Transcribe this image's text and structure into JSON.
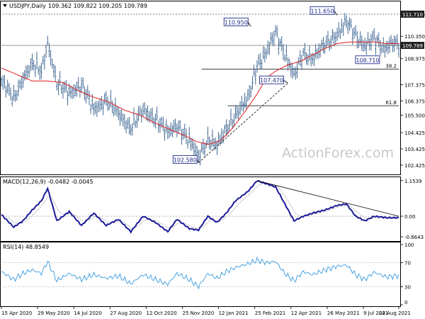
{
  "chart_data": {
    "type": "candlestick",
    "header": {
      "symbol_label": "USDJPY,Daily",
      "ohlc_text": "109.362 109.822 109.205 109.789"
    },
    "watermark": "ActionForex.com",
    "x_ticks": [
      "15 Apr 2020",
      "29 May 2020",
      "14 Jul 2020",
      "27 Aug 2020",
      "12 Oct 2020",
      "25 Nov 2020",
      "12 Jan 2021",
      "25 Feb 2021",
      "12 Apr 2021",
      "26 May 2021",
      "9 Jul 2021",
      "24 Aug 2021"
    ],
    "price": {
      "ylim": [
        101.9,
        112.45
      ],
      "y_ticks": [
        "111.710",
        "110.350",
        "108.975",
        "107.375",
        "106.375",
        "105.500",
        "104.425",
        "103.425",
        "102.425"
      ],
      "y_tick_values": [
        111.71,
        110.35,
        108.975,
        107.375,
        106.375,
        105.5,
        104.425,
        103.425,
        102.425
      ],
      "current_value": "109.789",
      "current_numeric": 109.789,
      "resistance_value": "111.710",
      "resistance_numeric": 111.71,
      "close_path": [
        [
          0,
          107.6
        ],
        [
          8,
          106.5
        ],
        [
          14,
          107.8
        ],
        [
          20,
          108.6
        ],
        [
          26,
          108.2
        ],
        [
          30,
          110.0
        ],
        [
          36,
          107.4
        ],
        [
          44,
          106.9
        ],
        [
          52,
          107.3
        ],
        [
          60,
          105.9
        ],
        [
          68,
          106.4
        ],
        [
          76,
          105.6
        ],
        [
          84,
          104.7
        ],
        [
          92,
          105.8
        ],
        [
          100,
          105.3
        ],
        [
          108,
          104.4
        ],
        [
          114,
          104.9
        ],
        [
          122,
          103.9
        ],
        [
          128,
          103.0
        ],
        [
          134,
          104.0
        ],
        [
          140,
          103.6
        ],
        [
          146,
          104.7
        ],
        [
          152,
          105.5
        ],
        [
          160,
          106.5
        ],
        [
          166,
          108.6
        ],
        [
          172,
          109.3
        ],
        [
          178,
          110.6
        ],
        [
          184,
          109.3
        ],
        [
          190,
          107.9
        ],
        [
          196,
          109.3
        ],
        [
          202,
          109.0
        ],
        [
          210,
          109.8
        ],
        [
          218,
          110.5
        ],
        [
          224,
          111.2
        ],
        [
          230,
          110.4
        ],
        [
          236,
          109.8
        ],
        [
          242,
          110.2
        ],
        [
          248,
          109.6
        ],
        [
          254,
          110.0
        ],
        [
          258,
          109.789
        ]
      ],
      "ma_path": [
        [
          0,
          108.4
        ],
        [
          10,
          108.0
        ],
        [
          20,
          107.6
        ],
        [
          30,
          107.6
        ],
        [
          40,
          107.5
        ],
        [
          50,
          107.0
        ],
        [
          60,
          106.6
        ],
        [
          70,
          106.3
        ],
        [
          80,
          105.8
        ],
        [
          90,
          105.5
        ],
        [
          100,
          105.0
        ],
        [
          110,
          104.6
        ],
        [
          120,
          104.2
        ],
        [
          126,
          103.9
        ],
        [
          134,
          103.7
        ],
        [
          142,
          103.9
        ],
        [
          150,
          104.7
        ],
        [
          158,
          105.7
        ],
        [
          166,
          106.8
        ],
        [
          172,
          107.8
        ],
        [
          178,
          108.2
        ],
        [
          186,
          108.6
        ],
        [
          194,
          108.8
        ],
        [
          202,
          109.2
        ],
        [
          210,
          109.6
        ],
        [
          218,
          109.9
        ],
        [
          226,
          110.0
        ],
        [
          234,
          110.0
        ],
        [
          242,
          110.0
        ],
        [
          250,
          109.9
        ],
        [
          258,
          109.9
        ]
      ],
      "trendline": [
        [
          128,
          102.58
        ],
        [
          186,
          107.47
        ]
      ],
      "fib_levels": [
        {
          "label": "38.2",
          "value": 108.33,
          "x_start": 130
        },
        {
          "label": "61.8",
          "value": 106.08,
          "x_start": 147
        }
      ],
      "annotations": [
        {
          "text": "110.950",
          "x": 162,
          "value": 110.95,
          "label_dx": -38,
          "label_dy": -6
        },
        {
          "text": "111.650",
          "x": 218,
          "value": 111.65,
          "label_dx": -38,
          "label_dy": -6
        },
        {
          "text": "107.470",
          "x": 186,
          "value": 107.47,
          "label_dx": -40,
          "label_dy": -4
        },
        {
          "text": "108.710",
          "x": 240,
          "value": 108.71,
          "label_dx": -22,
          "label_dy": -4
        },
        {
          "text": "102.580",
          "x": 128,
          "value": 102.58,
          "label_dx": -36,
          "label_dy": -4
        }
      ]
    },
    "macd": {
      "label": "MACD(12,26,9) -0.0482 -0.0045",
      "ylim": [
        -0.78,
        1.24
      ],
      "y_ticks": [
        "1.1539",
        "0.00",
        "-0.6643"
      ],
      "y_tick_values": [
        1.1539,
        0.0,
        -0.6643
      ],
      "hist_path": [
        [
          0,
          0.05
        ],
        [
          8,
          -0.35
        ],
        [
          14,
          -0.15
        ],
        [
          20,
          0.2
        ],
        [
          26,
          0.5
        ],
        [
          30,
          0.9
        ],
        [
          36,
          -0.15
        ],
        [
          44,
          0.15
        ],
        [
          52,
          -0.3
        ],
        [
          60,
          0.1
        ],
        [
          68,
          -0.3
        ],
        [
          76,
          -0.1
        ],
        [
          84,
          -0.5
        ],
        [
          92,
          0.0
        ],
        [
          100,
          -0.2
        ],
        [
          108,
          -0.5
        ],
        [
          114,
          -0.1
        ],
        [
          122,
          -0.4
        ],
        [
          128,
          -0.45
        ],
        [
          134,
          0.0
        ],
        [
          140,
          -0.2
        ],
        [
          146,
          0.1
        ],
        [
          152,
          0.5
        ],
        [
          160,
          0.8
        ],
        [
          166,
          1.15
        ],
        [
          172,
          1.05
        ],
        [
          178,
          0.95
        ],
        [
          184,
          0.4
        ],
        [
          190,
          -0.15
        ],
        [
          196,
          0.0
        ],
        [
          202,
          0.1
        ],
        [
          210,
          0.2
        ],
        [
          218,
          0.35
        ],
        [
          224,
          0.4
        ],
        [
          230,
          0.0
        ],
        [
          236,
          -0.15
        ],
        [
          242,
          0.0
        ],
        [
          250,
          -0.05
        ],
        [
          258,
          -0.05
        ]
      ],
      "trendline": [
        [
          166,
          1.15
        ],
        [
          258,
          0.0
        ]
      ]
    },
    "rsi": {
      "label": "RSI(14) 48.8549",
      "ylim": [
        0,
        100
      ],
      "y_ticks": [
        "100",
        "70",
        "30",
        "0"
      ],
      "y_tick_values": [
        100,
        70,
        30,
        0
      ],
      "path": [
        [
          0,
          55
        ],
        [
          8,
          42
        ],
        [
          14,
          52
        ],
        [
          20,
          58
        ],
        [
          26,
          52
        ],
        [
          30,
          72
        ],
        [
          36,
          40
        ],
        [
          44,
          52
        ],
        [
          52,
          42
        ],
        [
          60,
          50
        ],
        [
          68,
          44
        ],
        [
          76,
          48
        ],
        [
          84,
          35
        ],
        [
          92,
          50
        ],
        [
          100,
          42
        ],
        [
          108,
          34
        ],
        [
          114,
          52
        ],
        [
          122,
          42
        ],
        [
          128,
          30
        ],
        [
          134,
          52
        ],
        [
          140,
          44
        ],
        [
          146,
          55
        ],
        [
          152,
          62
        ],
        [
          160,
          68
        ],
        [
          166,
          74
        ],
        [
          172,
          70
        ],
        [
          178,
          72
        ],
        [
          184,
          52
        ],
        [
          190,
          40
        ],
        [
          196,
          55
        ],
        [
          202,
          50
        ],
        [
          210,
          58
        ],
        [
          218,
          64
        ],
        [
          224,
          66
        ],
        [
          230,
          50
        ],
        [
          236,
          42
        ],
        [
          242,
          54
        ],
        [
          250,
          46
        ],
        [
          258,
          48.85
        ]
      ]
    }
  }
}
